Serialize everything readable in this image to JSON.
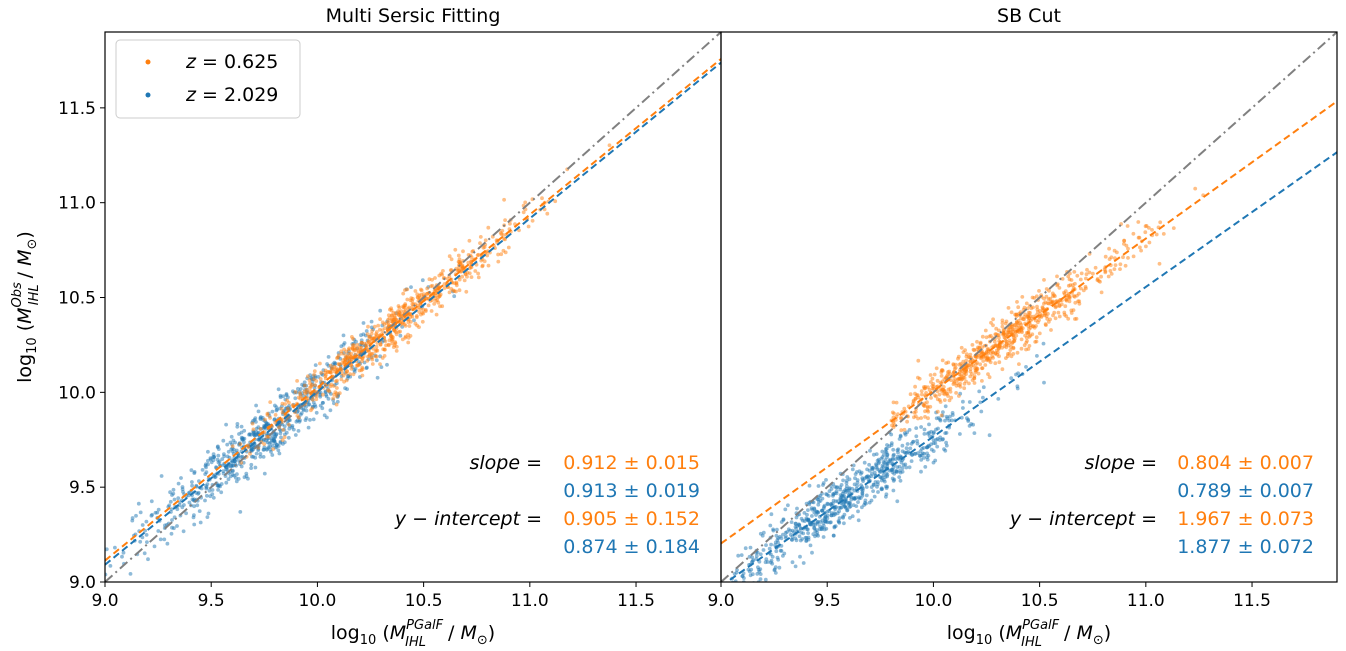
{
  "figure": {
    "colors": {
      "orange": "#ff7f0e",
      "blue": "#1f77b4",
      "identity": "#808080"
    },
    "ylabel": "log10 (M_IHL^Obs / M_⊙)",
    "xlabel": "log10 (M_IHL^PGalF / M_⊙)",
    "legend": [
      {
        "label": "z = 0.625",
        "color": "#ff7f0e"
      },
      {
        "label": "z = 2.029",
        "color": "#1f77b4"
      }
    ]
  },
  "chart_data": [
    {
      "type": "scatter",
      "title": "Multi Sersic Fitting",
      "xlabel": "log10 (M_IHL^PGalF / M_⊙)",
      "ylabel": "log10 (M_IHL^Obs / M_⊙)",
      "xlim": [
        9.0,
        11.9
      ],
      "ylim": [
        9.0,
        11.9
      ],
      "x_ticks": [
        "9.0",
        "9.5",
        "10.0",
        "10.5",
        "11.0",
        "11.5"
      ],
      "y_ticks": [
        "9.0",
        "9.5",
        "10.0",
        "10.5",
        "11.0",
        "11.5"
      ],
      "grid": false,
      "legend_position": "top-left",
      "identity_line": "y = x (gray dash-dot)",
      "series": [
        {
          "name": "z = 0.625",
          "color": "#ff7f0e",
          "x_range": [
            9.6,
            11.7
          ],
          "center": 10.35,
          "scatter": 0.055,
          "fit": {
            "slope": 0.912,
            "intercept": 0.905
          }
        },
        {
          "name": "z = 2.029",
          "color": "#1f77b4",
          "x_range": [
            9.0,
            10.7
          ],
          "center": 9.75,
          "scatter": 0.075,
          "fit": {
            "slope": 0.913,
            "intercept": 0.874
          }
        }
      ],
      "annotations": {
        "slope_label": "slope",
        "intercept_label": "y − intercept",
        "slope_orange": "0.912 ± 0.015",
        "slope_blue": "0.913 ± 0.019",
        "intercept_orange": "0.905 ± 0.152",
        "intercept_blue": "0.874 ± 0.184"
      }
    },
    {
      "type": "scatter",
      "title": "SB Cut",
      "xlabel": "log10 (M_IHL^PGalF / M_⊙)",
      "xlim": [
        9.0,
        11.9
      ],
      "ylim": [
        9.0,
        11.9
      ],
      "x_ticks": [
        "9.0",
        "9.5",
        "10.0",
        "10.5",
        "11.0",
        "11.5"
      ],
      "grid": false,
      "identity_line": "y = x (gray dash-dot)",
      "series": [
        {
          "name": "z = 0.625",
          "color": "#ff7f0e",
          "x_range": [
            9.8,
            11.7
          ],
          "center": 10.3,
          "scatter": 0.06,
          "fit": {
            "slope": 0.804,
            "intercept": 1.967
          }
        },
        {
          "name": "z = 2.029",
          "color": "#1f77b4",
          "x_range": [
            9.05,
            10.8
          ],
          "center": 9.6,
          "scatter": 0.07,
          "fit": {
            "slope": 0.789,
            "intercept": 1.877
          }
        }
      ],
      "annotations": {
        "slope_label": "slope",
        "intercept_label": "y − intercept",
        "slope_orange": "0.804 ± 0.007",
        "slope_blue": "0.789 ± 0.007",
        "intercept_orange": "1.967 ± 0.073",
        "intercept_blue": "1.877 ± 0.072"
      }
    }
  ]
}
